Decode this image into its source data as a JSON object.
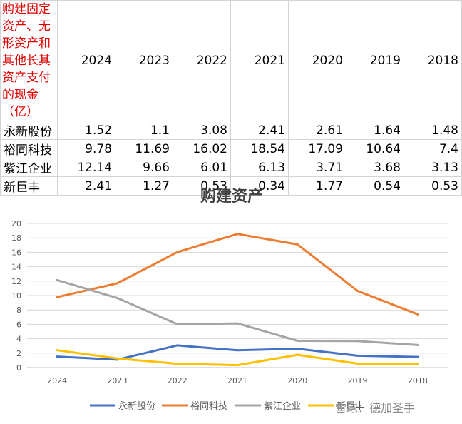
{
  "table": {
    "header_label": "购建固定资产、无形资产和其他长其资产支付的现金（亿）",
    "years": [
      "2024",
      "2023",
      "2022",
      "2021",
      "2020",
      "2019",
      "2018"
    ],
    "rows": [
      {
        "name": "永新股份",
        "values": [
          "1.52",
          "1.1",
          "3.08",
          "2.41",
          "2.61",
          "1.64",
          "1.48"
        ]
      },
      {
        "name": "裕同科技",
        "values": [
          "9.78",
          "11.69",
          "16.02",
          "18.54",
          "17.09",
          "10.64",
          "7.4"
        ]
      },
      {
        "name": "紫江企业",
        "values": [
          "12.14",
          "9.66",
          "6.01",
          "6.13",
          "3.71",
          "3.68",
          "3.13"
        ]
      },
      {
        "name": "新巨丰",
        "values": [
          "2.41",
          "1.27",
          "0.53",
          "0.34",
          "1.77",
          "0.54",
          "0.53"
        ]
      }
    ]
  },
  "chart_data": {
    "type": "line",
    "title": "购建资产",
    "categories": [
      "2024",
      "2023",
      "2022",
      "2021",
      "2020",
      "2019",
      "2018"
    ],
    "ylim": [
      0,
      20
    ],
    "yticks": [
      "0",
      "2",
      "4",
      "6",
      "8",
      "10",
      "12",
      "14",
      "16",
      "18",
      "20"
    ],
    "grid": true,
    "legend_position": "bottom",
    "series": [
      {
        "name": "永新股份",
        "color": "#4472c4",
        "values": [
          1.52,
          1.1,
          3.08,
          2.41,
          2.61,
          1.64,
          1.48
        ]
      },
      {
        "name": "裕同科技",
        "color": "#ed7d31",
        "values": [
          9.78,
          11.69,
          16.02,
          18.54,
          17.09,
          10.64,
          7.4
        ]
      },
      {
        "name": "紫江企业",
        "color": "#a5a5a5",
        "values": [
          12.14,
          9.66,
          6.01,
          6.13,
          3.71,
          3.68,
          3.13
        ]
      },
      {
        "name": "新巨丰",
        "color": "#ffc000",
        "values": [
          2.41,
          1.27,
          0.53,
          0.34,
          1.77,
          0.54,
          0.53
        ]
      }
    ]
  },
  "watermark": "雪球：德加圣手"
}
